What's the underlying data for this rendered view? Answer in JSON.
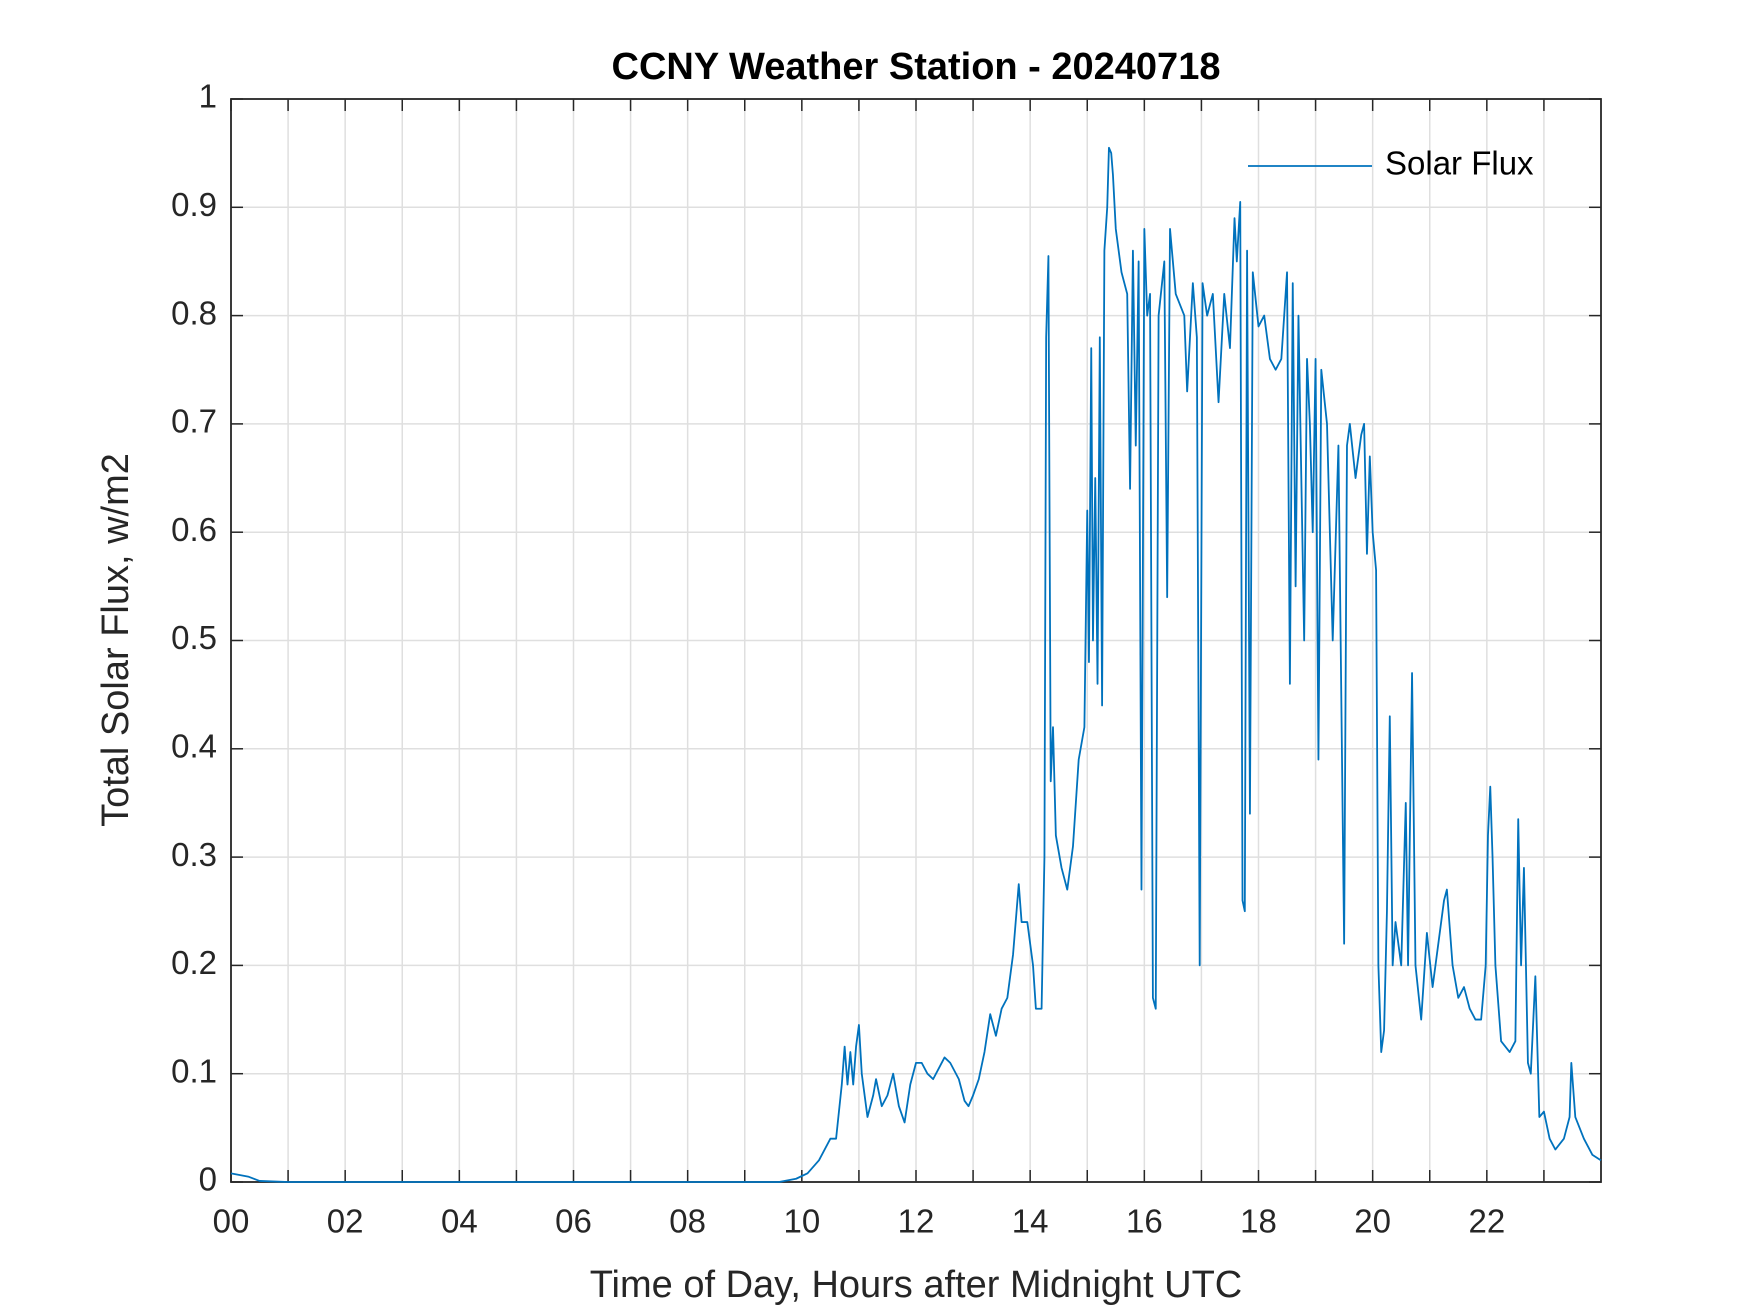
{
  "chart_data": {
    "type": "line",
    "title": "CCNY Weather Station - 20240718",
    "x_label": "Time of Day, Hours after Midnight UTC",
    "y_label": "Total Solar Flux, w/m2",
    "xlim": [
      0,
      24
    ],
    "ylim": [
      0,
      1
    ],
    "xticks": [
      {
        "value": 0,
        "label": "00"
      },
      {
        "value": 2,
        "label": "02"
      },
      {
        "value": 4,
        "label": "04"
      },
      {
        "value": 6,
        "label": "06"
      },
      {
        "value": 8,
        "label": "08"
      },
      10,
      12,
      14,
      16,
      18,
      20,
      22
    ],
    "xminor_ticks": [
      1,
      3,
      5,
      7,
      9,
      11,
      13,
      15,
      17,
      19,
      21,
      23
    ],
    "yticks": [
      0,
      0.1,
      0.2,
      0.3,
      0.4,
      0.5,
      0.6,
      0.7,
      0.8,
      0.9,
      1
    ],
    "grid": true,
    "legend": "upper right",
    "x": [
      0,
      0.3,
      0.5,
      1,
      9,
      9.6,
      9.9,
      10.1,
      10.3,
      10.5,
      10.6,
      10.7,
      10.75,
      10.8,
      10.85,
      10.9,
      10.95,
      11.0,
      11.05,
      11.15,
      11.25,
      11.3,
      11.4,
      11.5,
      11.6,
      11.7,
      11.8,
      11.9,
      12.0,
      12.1,
      12.2,
      12.3,
      12.4,
      12.5,
      12.6,
      12.75,
      12.85,
      12.92,
      13.0,
      13.1,
      13.2,
      13.3,
      13.4,
      13.5,
      13.6,
      13.7,
      13.8,
      13.85,
      13.95,
      14.05,
      14.1,
      14.2,
      14.25,
      14.28,
      14.32,
      14.36,
      14.4,
      14.45,
      14.55,
      14.65,
      14.75,
      14.85,
      14.95,
      15.0,
      15.03,
      15.07,
      15.1,
      15.14,
      15.18,
      15.22,
      15.26,
      15.3,
      15.35,
      15.38,
      15.42,
      15.45,
      15.5,
      15.6,
      15.7,
      15.75,
      15.8,
      15.85,
      15.9,
      15.95,
      16.0,
      16.05,
      16.1,
      16.15,
      16.2,
      16.25,
      16.35,
      16.4,
      16.45,
      16.55,
      16.7,
      16.75,
      16.85,
      16.92,
      16.97,
      17.02,
      17.1,
      17.2,
      17.3,
      17.4,
      17.5,
      17.58,
      17.62,
      17.68,
      17.72,
      17.76,
      17.8,
      17.85,
      17.9,
      18.0,
      18.1,
      18.2,
      18.3,
      18.4,
      18.45,
      18.5,
      18.55,
      18.6,
      18.65,
      18.7,
      18.8,
      18.85,
      18.9,
      18.95,
      19.0,
      19.05,
      19.1,
      19.2,
      19.3,
      19.4,
      19.5,
      19.55,
      19.6,
      19.7,
      19.8,
      19.85,
      19.9,
      19.95,
      20.0,
      20.06,
      20.1,
      20.15,
      20.2,
      20.25,
      20.3,
      20.35,
      20.4,
      20.5,
      20.58,
      20.62,
      20.69,
      20.75,
      20.85,
      20.95,
      21.05,
      21.15,
      21.25,
      21.3,
      21.4,
      21.5,
      21.6,
      21.7,
      21.8,
      21.9,
      21.98,
      22.02,
      22.06,
      22.1,
      22.15,
      22.25,
      22.4,
      22.5,
      22.55,
      22.6,
      22.65,
      22.72,
      22.77,
      22.85,
      22.92,
      23.0,
      23.1,
      23.2,
      23.35,
      23.45,
      23.48,
      23.55,
      23.7,
      23.85,
      24.0
    ],
    "series": [
      {
        "name": "Solar Flux",
        "color": "#0072bd",
        "values": [
          0.008,
          0.005,
          0.001,
          0,
          0,
          0,
          0.003,
          0.008,
          0.02,
          0.04,
          0.04,
          0.09,
          0.125,
          0.09,
          0.12,
          0.09,
          0.125,
          0.145,
          0.1,
          0.06,
          0.08,
          0.095,
          0.07,
          0.08,
          0.1,
          0.07,
          0.055,
          0.09,
          0.11,
          0.11,
          0.1,
          0.095,
          0.105,
          0.115,
          0.11,
          0.095,
          0.075,
          0.07,
          0.08,
          0.095,
          0.12,
          0.155,
          0.135,
          0.16,
          0.17,
          0.21,
          0.275,
          0.24,
          0.24,
          0.2,
          0.16,
          0.16,
          0.3,
          0.78,
          0.855,
          0.37,
          0.42,
          0.32,
          0.29,
          0.27,
          0.31,
          0.39,
          0.42,
          0.62,
          0.48,
          0.77,
          0.5,
          0.65,
          0.46,
          0.78,
          0.44,
          0.86,
          0.9,
          0.955,
          0.95,
          0.93,
          0.88,
          0.84,
          0.82,
          0.64,
          0.86,
          0.68,
          0.85,
          0.27,
          0.88,
          0.8,
          0.82,
          0.17,
          0.16,
          0.8,
          0.85,
          0.54,
          0.88,
          0.82,
          0.8,
          0.73,
          0.83,
          0.78,
          0.2,
          0.83,
          0.8,
          0.82,
          0.72,
          0.82,
          0.77,
          0.89,
          0.85,
          0.905,
          0.26,
          0.25,
          0.86,
          0.34,
          0.84,
          0.79,
          0.8,
          0.76,
          0.75,
          0.76,
          0.8,
          0.84,
          0.46,
          0.83,
          0.55,
          0.8,
          0.5,
          0.76,
          0.7,
          0.6,
          0.76,
          0.39,
          0.75,
          0.7,
          0.5,
          0.68,
          0.22,
          0.68,
          0.7,
          0.65,
          0.69,
          0.7,
          0.58,
          0.67,
          0.6,
          0.565,
          0.2,
          0.12,
          0.14,
          0.25,
          0.43,
          0.2,
          0.24,
          0.2,
          0.35,
          0.2,
          0.47,
          0.2,
          0.15,
          0.23,
          0.18,
          0.22,
          0.26,
          0.27,
          0.2,
          0.17,
          0.18,
          0.16,
          0.15,
          0.15,
          0.2,
          0.32,
          0.365,
          0.3,
          0.2,
          0.13,
          0.12,
          0.13,
          0.335,
          0.2,
          0.29,
          0.11,
          0.1,
          0.19,
          0.06,
          0.065,
          0.04,
          0.03,
          0.04,
          0.06,
          0.11,
          0.06,
          0.04,
          0.025,
          0.02
        ]
      }
    ]
  }
}
